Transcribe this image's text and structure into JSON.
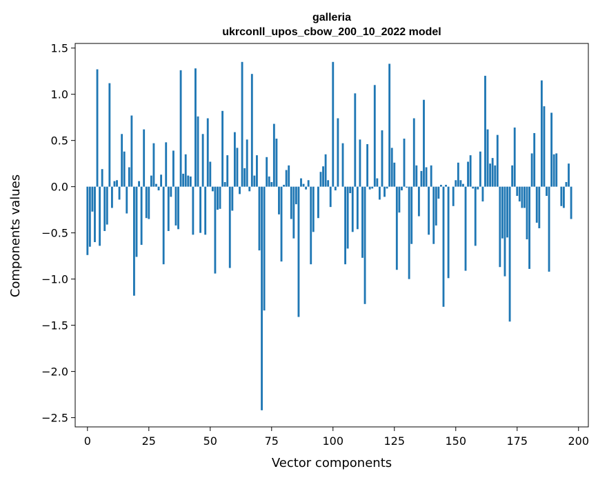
{
  "chart_data": {
    "type": "bar",
    "title": "galleria",
    "subtitle": "ukrconll_upos_cbow_200_10_2022 model",
    "xlabel": "Vector components",
    "ylabel": "Components values",
    "xlim": [
      -5,
      204
    ],
    "ylim": [
      -2.6,
      1.55
    ],
    "xticks": [
      0,
      25,
      50,
      75,
      100,
      125,
      150,
      175,
      200
    ],
    "xtick_labels": [
      "0",
      "25",
      "50",
      "75",
      "100",
      "125",
      "150",
      "175",
      "200"
    ],
    "yticks": [
      -2.5,
      -2.0,
      -1.5,
      -1.0,
      -0.5,
      0.0,
      0.5,
      1.0,
      1.5
    ],
    "ytick_labels": [
      "−2.5",
      "−2.0",
      "−1.5",
      "−1.0",
      "−0.5",
      "0.0",
      "0.5",
      "1.0",
      "1.5"
    ],
    "grid": false,
    "legend": false,
    "bar_color": "#1f77b4",
    "values": [
      -0.74,
      -0.65,
      -0.27,
      -0.6,
      1.27,
      -0.64,
      0.19,
      -0.48,
      -0.41,
      1.12,
      -0.23,
      0.06,
      0.07,
      -0.14,
      0.57,
      0.38,
      -0.29,
      0.21,
      0.77,
      -1.18,
      -0.76,
      0.06,
      -0.63,
      0.62,
      -0.34,
      -0.35,
      0.12,
      0.47,
      0.03,
      -0.04,
      0.13,
      -0.84,
      0.48,
      -0.48,
      -0.11,
      0.39,
      -0.42,
      -0.46,
      1.26,
      0.14,
      0.35,
      0.12,
      0.11,
      -0.52,
      1.28,
      0.76,
      -0.5,
      0.57,
      -0.52,
      0.74,
      0.27,
      -0.05,
      -0.94,
      -0.25,
      -0.24,
      0.82,
      0.05,
      0.34,
      -0.88,
      -0.26,
      0.59,
      0.42,
      -0.08,
      1.35,
      0.2,
      0.51,
      -0.05,
      1.22,
      0.12,
      0.34,
      -0.69,
      -2.42,
      -1.34,
      0.32,
      0.11,
      0.05,
      0.68,
      0.52,
      -0.3,
      -0.81,
      0.02,
      0.18,
      0.23,
      -0.35,
      -0.56,
      -0.19,
      -1.41,
      0.09,
      0.03,
      -0.03,
      0.07,
      -0.84,
      -0.49,
      0.0,
      -0.34,
      0.16,
      0.22,
      0.35,
      0.07,
      -0.22,
      1.35,
      -0.04,
      0.74,
      0.0,
      0.47,
      -0.84,
      -0.67,
      -0.07,
      -0.49,
      1.01,
      -0.46,
      0.51,
      -0.77,
      -1.27,
      0.46,
      -0.03,
      -0.02,
      1.1,
      0.09,
      -0.14,
      0.61,
      -0.11,
      -0.02,
      1.33,
      0.42,
      0.26,
      -0.9,
      -0.28,
      -0.04,
      0.52,
      -0.01,
      -1.0,
      -0.62,
      0.74,
      0.23,
      -0.32,
      0.17,
      0.94,
      0.21,
      -0.52,
      0.23,
      -0.62,
      -0.42,
      -0.13,
      0.02,
      -1.3,
      0.02,
      -0.99,
      0.0,
      -0.21,
      0.07,
      0.26,
      0.07,
      0.03,
      -0.91,
      0.27,
      0.34,
      -0.02,
      -0.64,
      -0.03,
      0.38,
      -0.16,
      1.2,
      0.62,
      0.25,
      0.31,
      0.23,
      0.56,
      -0.87,
      -0.56,
      -0.97,
      -0.55,
      -1.46,
      0.23,
      0.64,
      -0.1,
      -0.16,
      -0.23,
      -0.23,
      -0.57,
      -0.89,
      0.36,
      0.58,
      -0.39,
      -0.45,
      1.15,
      0.87,
      -0.1,
      -0.92,
      0.8,
      0.35,
      0.36,
      0.0,
      -0.21,
      -0.23,
      0.05,
      0.25,
      -0.35
    ]
  }
}
